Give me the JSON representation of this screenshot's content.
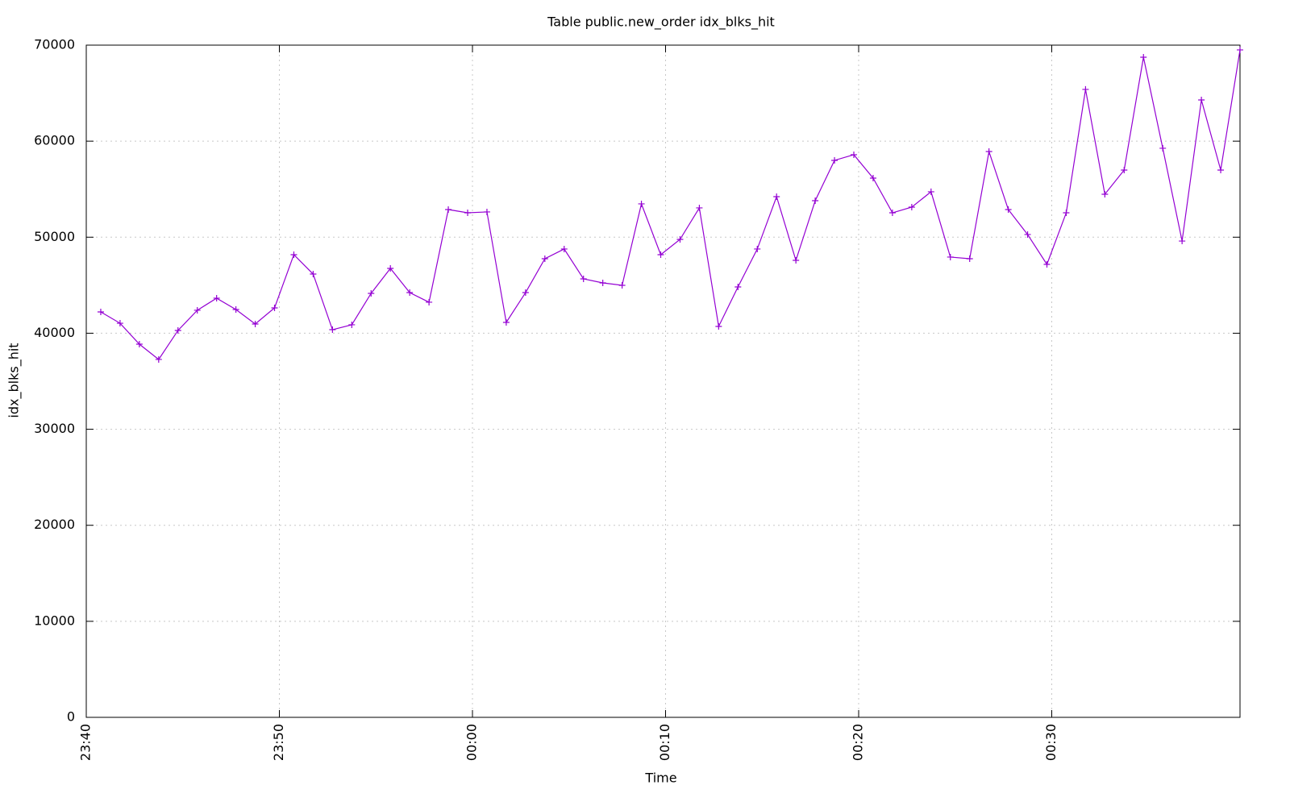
{
  "chart_data": {
    "type": "line",
    "title": "Table public.new_order idx_blks_hit",
    "xlabel": "Time",
    "ylabel": "idx_blks_hit",
    "x": [
      0.75,
      1.75,
      2.75,
      3.75,
      4.75,
      5.75,
      6.75,
      7.75,
      8.75,
      9.75,
      10.75,
      11.75,
      12.75,
      13.75,
      14.75,
      15.75,
      16.75,
      17.75,
      18.75,
      19.75,
      20.75,
      21.75,
      22.75,
      23.75,
      24.75,
      25.75,
      26.75,
      27.75,
      28.75,
      29.75,
      30.75,
      31.75,
      32.75,
      33.75,
      34.75,
      35.75,
      36.75,
      37.75,
      38.75,
      39.75,
      40.75,
      41.75,
      42.75,
      43.75,
      44.75,
      45.75,
      46.75,
      47.75,
      48.75,
      49.75,
      50.75,
      51.75,
      52.75,
      53.75,
      54.75,
      55.75,
      56.75,
      57.75,
      58.75,
      59.75
    ],
    "series": [
      {
        "name": "idx_blks_hit",
        "color": "#9400d3",
        "values": [
          42220,
          41040,
          38860,
          37270,
          40290,
          42390,
          43650,
          42470,
          40960,
          42640,
          48180,
          46160,
          40370,
          40880,
          44150,
          46750,
          44230,
          43230,
          52880,
          52540,
          52630,
          41130,
          44230,
          47760,
          48770,
          45660,
          45240,
          44990,
          53470,
          48180,
          49770,
          53050,
          40710,
          44820,
          48770,
          54220,
          47590,
          53800,
          58000,
          58590,
          56150,
          52540,
          53130,
          54730,
          47930,
          47760,
          58920,
          52880,
          50280,
          47170,
          52540,
          65390,
          54470,
          56990,
          68740,
          59260,
          49600,
          64290,
          56990,
          69500
        ]
      }
    ],
    "xlim": [
      0,
      59.75
    ],
    "xticks": [
      {
        "value": 0,
        "label": "23:40"
      },
      {
        "value": 10,
        "label": "23:50"
      },
      {
        "value": 20,
        "label": "00:00"
      },
      {
        "value": 30,
        "label": "00:10"
      },
      {
        "value": 40,
        "label": "00:20"
      },
      {
        "value": 50,
        "label": "00:30"
      }
    ],
    "ylim": [
      0,
      70000
    ],
    "yticks": [
      0,
      10000,
      20000,
      30000,
      40000,
      50000,
      60000,
      70000
    ],
    "grid": true
  }
}
